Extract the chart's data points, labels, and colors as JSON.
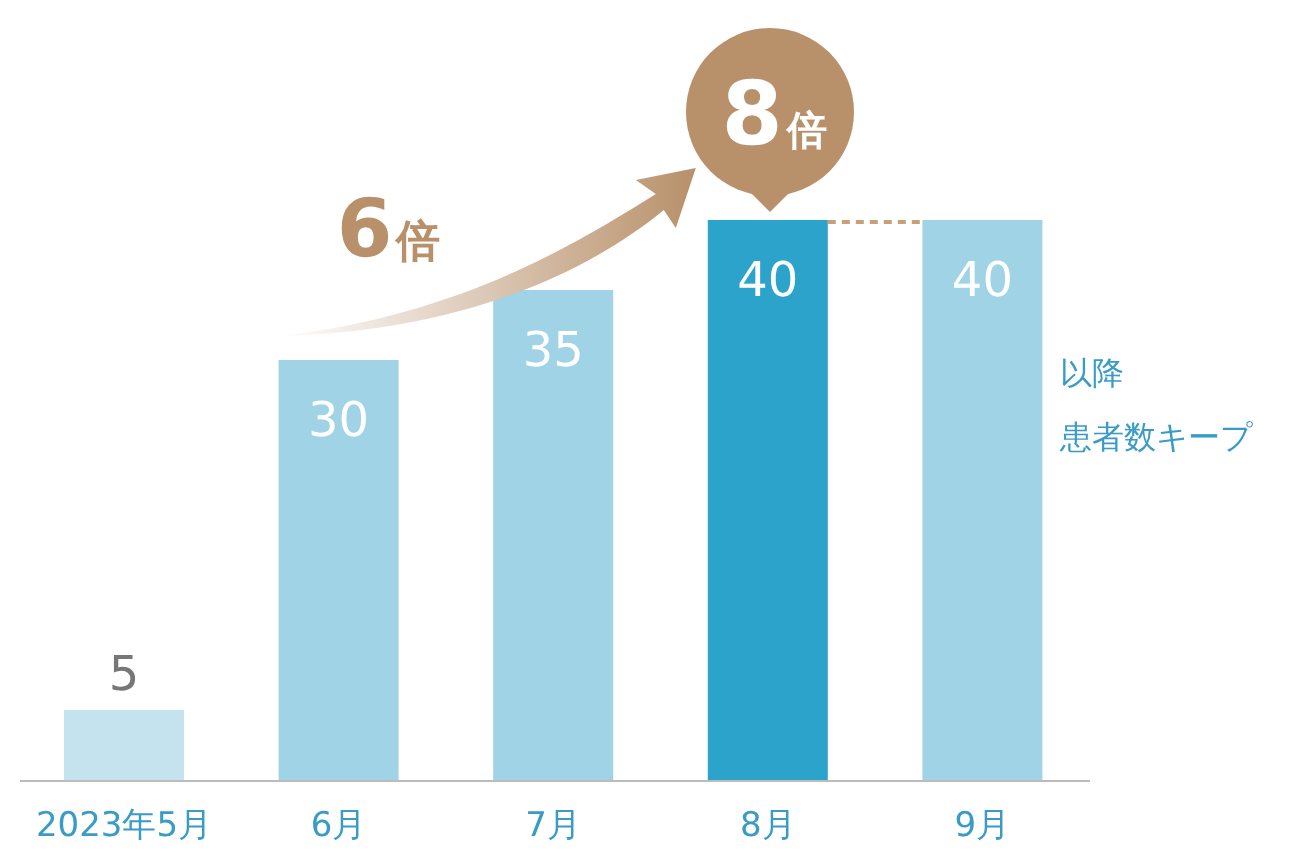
{
  "chart_data": {
    "type": "bar",
    "categories": [
      "2023年5月",
      "6月",
      "7月",
      "8月",
      "9月"
    ],
    "values": [
      5,
      30,
      35,
      40,
      40
    ],
    "colors": [
      "#c5e3ee",
      "#9fd3e5",
      "#9fd3e5",
      "#2ca3cb",
      "#9fd3e5"
    ],
    "relative": false,
    "data_labels": true,
    "annotations": [
      "6倍",
      "8倍",
      "以降",
      "患者数キープ"
    ]
  }
}
